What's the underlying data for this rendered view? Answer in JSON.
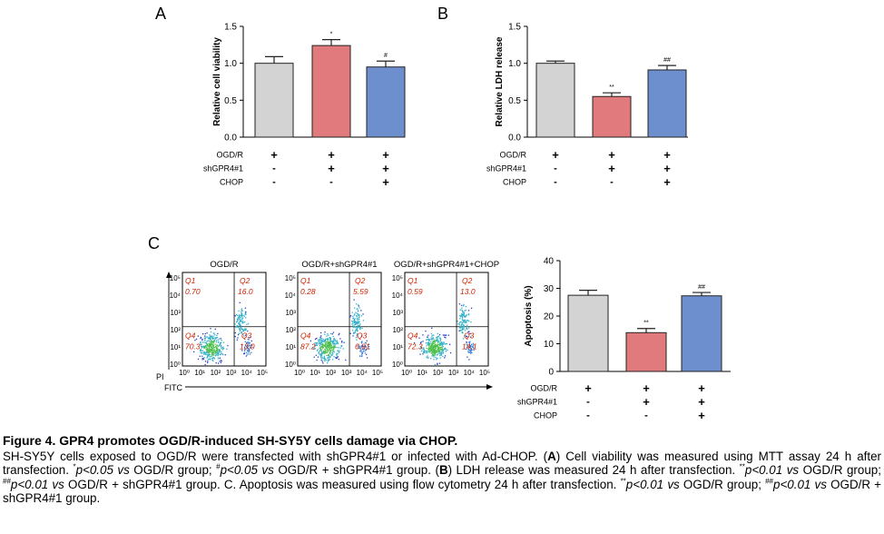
{
  "panels": {
    "A": {
      "letter": "A"
    },
    "B": {
      "letter": "B"
    },
    "C": {
      "letter": "C"
    }
  },
  "colors": {
    "ogdr": "#d3d3d3",
    "shgpr4": "#e07a7d",
    "chop": "#6d8fce",
    "flow_label": "#cc2200"
  },
  "chart_data": [
    {
      "panel": "A",
      "type": "bar",
      "categories": [
        "OGD/R",
        "OGD/R+shGPR4#1",
        "OGD/R+shGPR4#1+CHOP"
      ],
      "values": [
        1.0,
        1.24,
        0.95
      ],
      "errors": [
        0.09,
        0.08,
        0.08
      ],
      "significance": [
        "",
        "*",
        "#"
      ],
      "ylabel": "Relative cell viability",
      "ylim": [
        0,
        1.5
      ],
      "yticks": [
        "0.0",
        "0.5",
        "1.0",
        "1.5"
      ],
      "condition_rows": [
        {
          "label": "OGD/R",
          "signs": [
            "+",
            "+",
            "+"
          ]
        },
        {
          "label": "shGPR4#1",
          "signs": [
            "-",
            "+",
            "+"
          ]
        },
        {
          "label": "CHOP",
          "signs": [
            "-",
            "-",
            "+"
          ]
        }
      ]
    },
    {
      "panel": "B",
      "type": "bar",
      "categories": [
        "OGD/R",
        "OGD/R+shGPR4#1",
        "OGD/R+shGPR4#1+CHOP"
      ],
      "values": [
        1.0,
        0.55,
        0.91
      ],
      "errors": [
        0.03,
        0.05,
        0.06
      ],
      "significance": [
        "",
        "**",
        "##"
      ],
      "ylabel": "Relative LDH release",
      "ylim": [
        0,
        1.5
      ],
      "yticks": [
        "0.0",
        "0.5",
        "1.0",
        "1.5"
      ],
      "condition_rows": [
        {
          "label": "OGD/R",
          "signs": [
            "+",
            "+",
            "+"
          ]
        },
        {
          "label": "shGPR4#1",
          "signs": [
            "-",
            "+",
            "+"
          ]
        },
        {
          "label": "CHOP",
          "signs": [
            "-",
            "-",
            "+"
          ]
        }
      ]
    },
    {
      "panel": "C",
      "type": "bar",
      "categories": [
        "OGD/R",
        "OGD/R+shGPR4#1",
        "OGD/R+shGPR4#1+CHOP"
      ],
      "values": [
        27.5,
        14.0,
        27.3
      ],
      "errors": [
        1.8,
        1.5,
        1.2
      ],
      "significance": [
        "",
        "**",
        "##"
      ],
      "ylabel": "Apoptosis (%)",
      "ylim": [
        0,
        40
      ],
      "yticks": [
        "0",
        "10",
        "20",
        "30",
        "40"
      ],
      "condition_rows": [
        {
          "label": "OGD/R",
          "signs": [
            "+",
            "+",
            "+"
          ]
        },
        {
          "label": "shGPR4#1",
          "signs": [
            "-",
            "+",
            "+"
          ]
        },
        {
          "label": "CHOP",
          "signs": [
            "-",
            "-",
            "+"
          ]
        }
      ]
    }
  ],
  "flow": {
    "x_axis_label": "FITC",
    "y_axis_label": "PI",
    "tick_labels": [
      "10⁰",
      "10¹",
      "10²",
      "10³",
      "10⁴",
      "10⁵"
    ],
    "plots": [
      {
        "title": "OGD/R",
        "quadrants": [
          {
            "name": "Q1",
            "value": "0.70"
          },
          {
            "name": "Q2",
            "value": "16.0"
          },
          {
            "name": "Q4",
            "value": "70.3"
          },
          {
            "name": "Q3",
            "value": "13.0"
          }
        ]
      },
      {
        "title": "OGD/R+shGPR4#1",
        "quadrants": [
          {
            "name": "Q1",
            "value": "0.28"
          },
          {
            "name": "Q2",
            "value": "5.59"
          },
          {
            "name": "Q4",
            "value": "87.2"
          },
          {
            "name": "Q3",
            "value": "6.91"
          }
        ]
      },
      {
        "title": "OGD/R+shGPR4#1+CHOP",
        "quadrants": [
          {
            "name": "Q1",
            "value": "0.59"
          },
          {
            "name": "Q2",
            "value": "13.0"
          },
          {
            "name": "Q4",
            "value": "72.3"
          },
          {
            "name": "Q3",
            "value": "14.1"
          }
        ]
      }
    ]
  },
  "caption": {
    "title": "Figure 4. GPR4 promotes OGD/R-induced SH-SY5Y cells damage via CHOP.",
    "s1": "SH-SY5Y cells exposed to OGD/R were transfected with shGPR4#1 or infected with Ad-CHOP. (",
    "s2": "A",
    "s3": ") Cell viability was measured using MTT assay 24 h after transfection. ",
    "s4": "*",
    "s5": "p<0.05",
    "s6": " vs",
    "s7": " OGD/R group; ",
    "s8": "#",
    "s9": "p<0.05",
    "s10": " vs",
    "s11": " OGD/R + shGPR4#1 group. (",
    "s12": "B",
    "s13": ") LDH release was measured 24 h after transfection. ",
    "s14": "**",
    "s15": "p<0.01",
    "s16": " vs",
    "s17": " OGD/R group; ",
    "s18": "##",
    "s19": "p<0.01",
    "s20": " vs",
    "s21": " OGD/R + shGPR4#1 group. C. Apoptosis was measured using flow cytometry 24 h after transfection. ",
    "s22": "**",
    "s23": "p<0.01",
    "s24": " vs",
    "s25": " OGD/R group; ",
    "s26": "##",
    "s27": "p<0.01",
    "s28": " vs",
    "s29": " OGD/R + shGPR4#1 group."
  }
}
